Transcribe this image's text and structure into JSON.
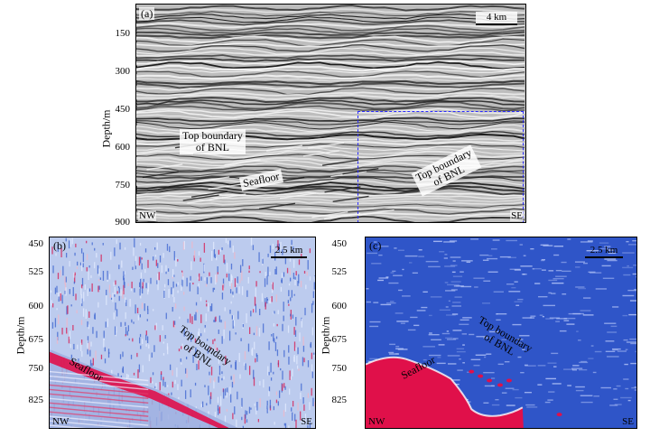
{
  "panel_a": {
    "label": "(a)",
    "scale": "4 km",
    "left_corner": "NW",
    "right_corner": "SE",
    "y_axis_label": "Depth/m",
    "y_ticks": [
      "150",
      "300",
      "450",
      "600",
      "750",
      "900"
    ],
    "annotations": {
      "top_boundary_left_1": "Top boundary",
      "top_boundary_left_2": "of BNL",
      "seafloor": "Seafloor",
      "top_boundary_right_1": "Top boundary",
      "top_boundary_right_2": "of BNL"
    }
  },
  "panel_b": {
    "label": "(b)",
    "scale": "2.5 km",
    "left_corner": "NW",
    "right_corner": "SE",
    "y_axis_label": "Depth/m",
    "y_ticks": [
      "450",
      "525",
      "600",
      "675",
      "750",
      "825"
    ],
    "annotations": {
      "seafloor": "Seafloor",
      "top_boundary_1": "Top boundary",
      "top_boundary_2": "of BNL"
    }
  },
  "panel_c": {
    "label": "(c)",
    "scale": "2.5 km",
    "left_corner": "NW",
    "right_corner": "SE",
    "y_axis_label": "Depth/m",
    "y_ticks": [
      "450",
      "525",
      "600",
      "675",
      "750",
      "825"
    ],
    "annotations": {
      "seafloor": "Seafloor",
      "top_boundary_1": "Top boundary",
      "top_boundary_2": "of BNL"
    }
  },
  "colors": {
    "seismic_dark": "#1a1a1a",
    "seismic_light": "#f2f2f2",
    "attribute_blue": "#2f55c8",
    "attribute_red": "#e0104a",
    "roi_box": "#2a2aff"
  }
}
